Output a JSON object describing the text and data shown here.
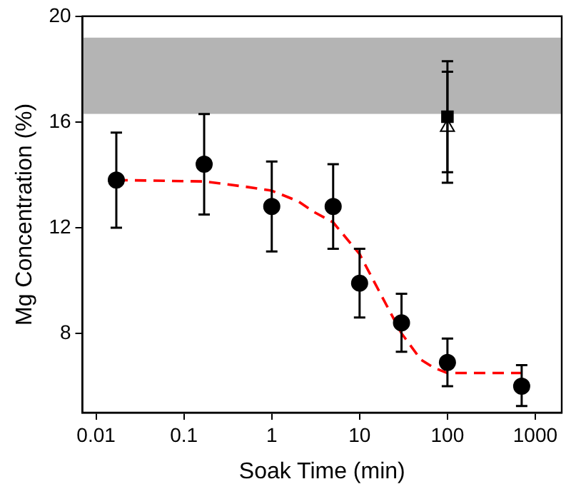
{
  "chart_data": {
    "type": "scatter",
    "xlabel": "Soak Time (min)",
    "ylabel": "Mg Concentration (%)",
    "log": "x",
    "xlim": [
      0.007,
      2000
    ],
    "xticks": [
      0.01,
      0.1,
      1,
      10,
      100,
      1000
    ],
    "ylim": [
      5,
      20
    ],
    "yticks": [
      8,
      12,
      16,
      20
    ],
    "grid": false,
    "legend": false,
    "series": [
      {
        "type": "line",
        "color": "#ff0000",
        "line_style": "dashed",
        "marker": "none",
        "x": [
          0.017,
          0.17,
          0.5,
          1,
          2,
          3,
          5,
          10,
          20,
          30,
          50,
          70,
          100,
          700
        ],
        "values": [
          13.8,
          13.75,
          13.55,
          13.4,
          13.0,
          12.6,
          12.2,
          11.0,
          9.1,
          8.0,
          7.0,
          6.7,
          6.5,
          6.5
        ]
      },
      {
        "color": "#000000",
        "marker": "circle",
        "x": [
          0.017,
          0.17,
          1,
          5,
          10,
          30,
          100,
          700
        ],
        "values": [
          13.8,
          14.4,
          12.8,
          12.8,
          9.9,
          8.4,
          6.9,
          6.0
        ],
        "errors": [
          [
            12.0,
            15.6
          ],
          [
            12.5,
            16.3
          ],
          [
            11.1,
            14.5
          ],
          [
            11.2,
            14.4
          ],
          [
            8.6,
            11.2
          ],
          [
            7.3,
            9.5
          ],
          [
            6.0,
            7.8
          ],
          [
            5.25,
            6.8
          ]
        ]
      },
      {
        "color": "#000000",
        "marker": "square",
        "x": [
          100
        ],
        "values": [
          16.2
        ],
        "errors": [
          [
            13.7,
            18.3
          ]
        ]
      },
      {
        "color": "#000000",
        "marker": "triangle",
        "x": [
          100
        ],
        "values": [
          15.8
        ],
        "errors": [
          [
            14.1,
            17.9
          ]
        ]
      }
    ],
    "bands": [
      {
        "axis": "y",
        "from": 16.3,
        "to": 19.2,
        "color": "#b4b4b4"
      }
    ]
  }
}
